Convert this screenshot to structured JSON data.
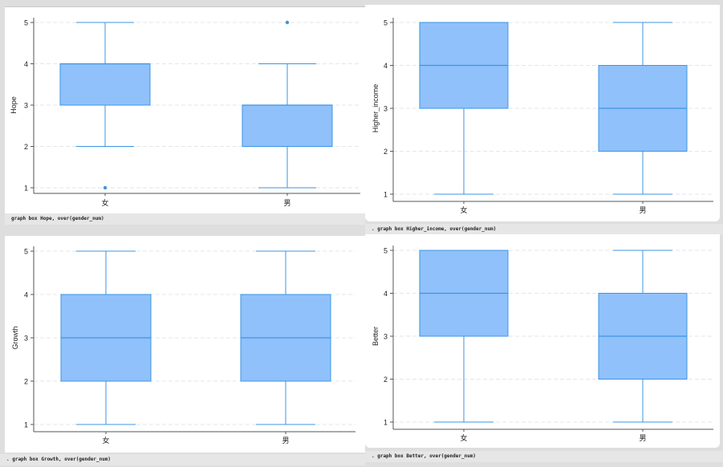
{
  "colors": {
    "box_fill": "#90c1fb",
    "box_stroke": "#3c95e3",
    "outlier": "#3c95e3",
    "grid": "#e3e6ee",
    "axis": "#555555"
  },
  "commands": {
    "c1": "graph box Hope, over(gender_num)",
    "c2": ". graph box Higher_income, over(gender_num)",
    "c3": ". graph box Growth, over(gender_num)",
    "c4": ". graph box Better, over(gender_num)"
  },
  "chart_data": [
    {
      "type": "box",
      "ylabel": "Hope",
      "categories": [
        "女",
        "男"
      ],
      "yticks": [
        1,
        2,
        3,
        4,
        5
      ],
      "ylim": [
        1,
        5
      ],
      "grid": true,
      "boxes": [
        {
          "category": "女",
          "whisker_low": 2,
          "q1": 3,
          "median": 4,
          "q3": 4,
          "whisker_high": 5,
          "outliers": [
            1
          ]
        },
        {
          "category": "男",
          "whisker_low": 1,
          "q1": 2,
          "median": 3,
          "q3": 3,
          "whisker_high": 4,
          "outliers": [
            5
          ]
        }
      ]
    },
    {
      "type": "box",
      "ylabel": "Higher_income",
      "categories": [
        "女",
        "男"
      ],
      "yticks": [
        1,
        2,
        3,
        4,
        5
      ],
      "ylim": [
        1,
        5
      ],
      "grid": true,
      "boxes": [
        {
          "category": "女",
          "whisker_low": 1,
          "q1": 3,
          "median": 4,
          "q3": 5,
          "whisker_high": 5,
          "outliers": []
        },
        {
          "category": "男",
          "whisker_low": 1,
          "q1": 2,
          "median": 3,
          "q3": 4,
          "whisker_high": 5,
          "outliers": []
        }
      ]
    },
    {
      "type": "box",
      "ylabel": "Growth",
      "categories": [
        "女",
        "男"
      ],
      "yticks": [
        1,
        2,
        3,
        4,
        5
      ],
      "ylim": [
        1,
        5
      ],
      "grid": true,
      "boxes": [
        {
          "category": "女",
          "whisker_low": 1,
          "q1": 2,
          "median": 3,
          "q3": 4,
          "whisker_high": 5,
          "outliers": []
        },
        {
          "category": "男",
          "whisker_low": 1,
          "q1": 2,
          "median": 3,
          "q3": 4,
          "whisker_high": 5,
          "outliers": []
        }
      ]
    },
    {
      "type": "box",
      "ylabel": "Better",
      "categories": [
        "女",
        "男"
      ],
      "yticks": [
        1,
        2,
        3,
        4,
        5
      ],
      "ylim": [
        1,
        5
      ],
      "grid": true,
      "boxes": [
        {
          "category": "女",
          "whisker_low": 1,
          "q1": 3,
          "median": 4,
          "q3": 5,
          "whisker_high": 5,
          "outliers": []
        },
        {
          "category": "男",
          "whisker_low": 1,
          "q1": 2,
          "median": 3,
          "q3": 4,
          "whisker_high": 5,
          "outliers": []
        }
      ]
    }
  ]
}
